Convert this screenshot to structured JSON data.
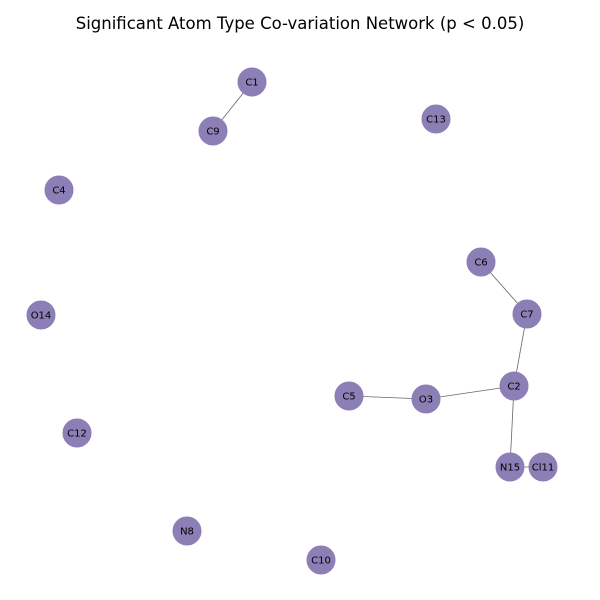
{
  "title": "Significant Atom Type Co-variation Network (p < 0.05)",
  "colors": {
    "node_fill": "#8b7fb6",
    "edge": "#666666",
    "background": "#ffffff",
    "text": "#000000"
  },
  "nodes": [
    {
      "id": "C1",
      "label": "C1"
    },
    {
      "id": "C9",
      "label": "C9"
    },
    {
      "id": "C13",
      "label": "C13"
    },
    {
      "id": "C4",
      "label": "C4"
    },
    {
      "id": "C6",
      "label": "C6"
    },
    {
      "id": "O14",
      "label": "O14"
    },
    {
      "id": "C7",
      "label": "C7"
    },
    {
      "id": "C2",
      "label": "C2"
    },
    {
      "id": "C5",
      "label": "C5"
    },
    {
      "id": "O3",
      "label": "O3"
    },
    {
      "id": "C12",
      "label": "C12"
    },
    {
      "id": "N15",
      "label": "N15"
    },
    {
      "id": "Cl11",
      "label": "Cl11"
    },
    {
      "id": "N8",
      "label": "N8"
    },
    {
      "id": "C10",
      "label": "C10"
    }
  ],
  "edges": [
    {
      "source": "C1",
      "target": "C9"
    },
    {
      "source": "C6",
      "target": "C7"
    },
    {
      "source": "C7",
      "target": "C2"
    },
    {
      "source": "C2",
      "target": "O3"
    },
    {
      "source": "O3",
      "target": "C5"
    },
    {
      "source": "C2",
      "target": "N15"
    },
    {
      "source": "N15",
      "target": "Cl11"
    }
  ]
}
